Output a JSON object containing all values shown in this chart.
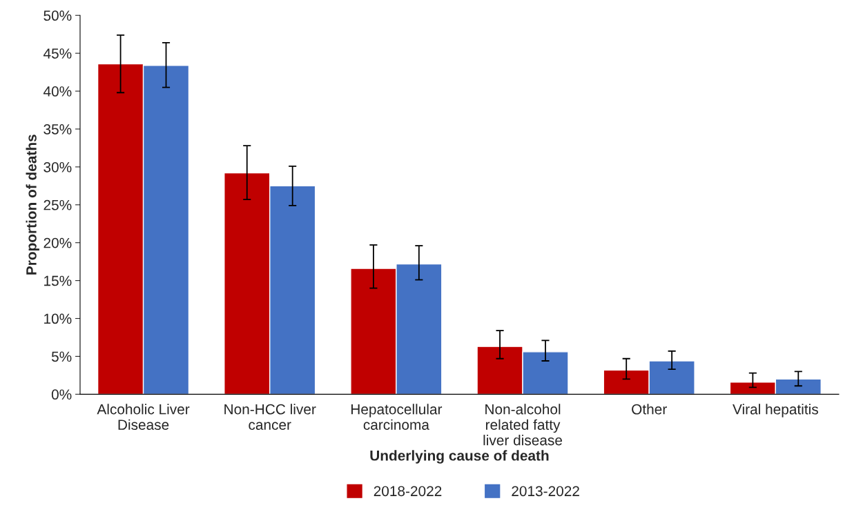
{
  "chart_data": {
    "type": "bar",
    "xlabel": "Underlying cause of death",
    "ylabel": "Proportion of deaths",
    "categories": [
      "Alcoholic Liver\nDisease",
      "Non-HCC liver\ncancer",
      "Hepatocellular\ncarcinoma",
      "Non-alcohol\nrelated fatty\nliver disease",
      "Other",
      "Viral hepatitis"
    ],
    "series": [
      {
        "name": "2018-2022",
        "color": "#c00000",
        "values": [
          43.6,
          29.2,
          16.6,
          6.3,
          3.2,
          1.6
        ],
        "errors": [
          [
            39.8,
            47.4
          ],
          [
            25.7,
            32.8
          ],
          [
            14.0,
            19.7
          ],
          [
            4.7,
            8.4
          ],
          [
            2.0,
            4.7
          ],
          [
            0.9,
            2.8
          ]
        ]
      },
      {
        "name": "2013-2022",
        "color": "#4472c4",
        "values": [
          43.4,
          27.5,
          17.2,
          5.6,
          4.4,
          2.0
        ],
        "errors": [
          [
            40.5,
            46.4
          ],
          [
            24.9,
            30.1
          ],
          [
            15.1,
            19.6
          ],
          [
            4.4,
            7.1
          ],
          [
            3.3,
            5.7
          ],
          [
            1.1,
            3.0
          ]
        ]
      }
    ],
    "ylim": [
      0,
      50
    ],
    "yticks": [
      {
        "value": 0,
        "label": "0%"
      },
      {
        "value": 5,
        "label": "5%"
      },
      {
        "value": 10,
        "label": "10%"
      },
      {
        "value": 15,
        "label": "15%"
      },
      {
        "value": 20,
        "label": "20%"
      },
      {
        "value": 25,
        "label": "25%"
      },
      {
        "value": 30,
        "label": "30%"
      },
      {
        "value": 35,
        "label": "35%"
      },
      {
        "value": 40,
        "label": "40%"
      },
      {
        "value": 45,
        "label": "45%"
      },
      {
        "value": 50,
        "label": "50%"
      }
    ],
    "grid": false,
    "legend": "bottom"
  }
}
